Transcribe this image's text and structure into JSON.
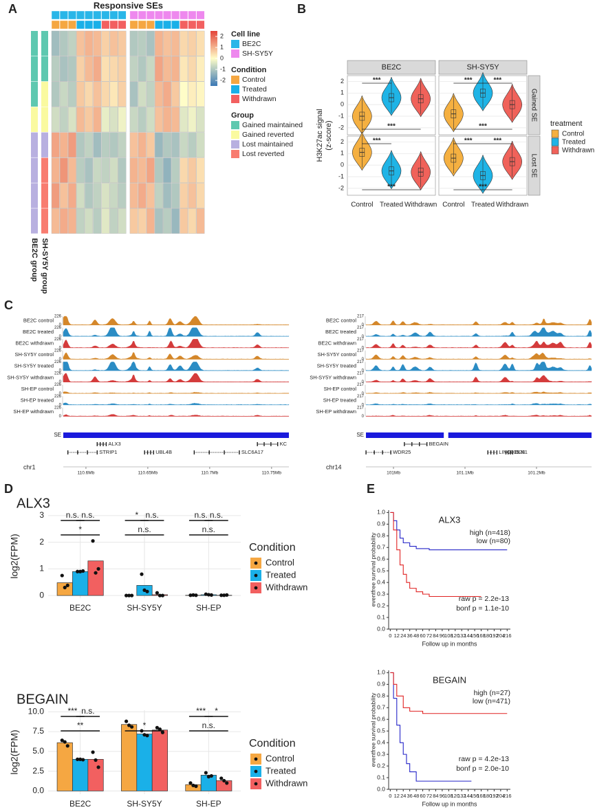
{
  "panel_labels": [
    "A",
    "B",
    "C",
    "D",
    "E"
  ],
  "chart_data": [
    {
      "type": "heatmap",
      "title": "Responsive SEs",
      "clim": [
        -2.5,
        2.5
      ],
      "colors": [
        "#3b78b5",
        "#fffdc8",
        "#e3433a"
      ],
      "colorbar_ticks": [
        2,
        1,
        0,
        -1,
        -2
      ],
      "column_cell_line": [
        0,
        0,
        0,
        0,
        0,
        0,
        0,
        0,
        0,
        1,
        1,
        1,
        1,
        1,
        1,
        1,
        1,
        1
      ],
      "column_condition": [
        0,
        0,
        0,
        1,
        1,
        1,
        2,
        2,
        2,
        0,
        0,
        0,
        1,
        1,
        1,
        2,
        2,
        2
      ],
      "row_group_labels": [
        "BE2C group",
        "SH-SY5Y group"
      ],
      "row_groups": [
        [
          0,
          0,
          0,
          1,
          2,
          2,
          2,
          2
        ],
        [
          0,
          0,
          1,
          1,
          2,
          3,
          3,
          3
        ]
      ],
      "values": [
        [
          -1.2,
          -1,
          -0.8,
          0.8,
          1,
          0.9,
          0.6,
          0.8,
          0.7,
          -1,
          -0.9,
          -1.1,
          1,
          0.8,
          0.9,
          0.5,
          0.6,
          0.4
        ],
        [
          -0.9,
          -1.1,
          -1,
          0.6,
          0.9,
          1.1,
          0.4,
          0.5,
          0.6,
          -0.8,
          -1,
          -0.7,
          1.2,
          0.9,
          1,
          0.3,
          0.5,
          0.2
        ],
        [
          -1,
          -0.7,
          -0.9,
          0.7,
          0.5,
          0.8,
          0.5,
          0.3,
          0.6,
          -1.1,
          -0.6,
          -0.8,
          0.9,
          1.1,
          0.7,
          0,
          0.2,
          0.1
        ],
        [
          -0.6,
          -0.8,
          -0.5,
          0.9,
          0.7,
          1,
          -0.3,
          -0.5,
          -0.2,
          -0.7,
          -0.9,
          -0.6,
          0.8,
          1,
          0.9,
          -0.4,
          -0.2,
          -0.5
        ],
        [
          1.2,
          1,
          1.3,
          -1,
          -0.8,
          -1.2,
          -0.9,
          -1,
          -0.8,
          0.8,
          1,
          0.7,
          -1.3,
          -1,
          -1.1,
          -0.7,
          -0.9,
          -0.6
        ],
        [
          1,
          1.4,
          0.9,
          -0.9,
          -1.1,
          -0.7,
          -0.8,
          -0.6,
          -1,
          1,
          0.9,
          1.2,
          -1,
          -1.4,
          -0.9,
          0.5,
          0.7,
          0.4
        ],
        [
          1.3,
          0.8,
          1.1,
          -0.6,
          -1,
          -0.8,
          -0.5,
          -0.7,
          -0.9,
          0.9,
          1.1,
          0.8,
          -0.8,
          -1.2,
          -1,
          0.6,
          0.8,
          0.5
        ],
        [
          0.9,
          1.1,
          1,
          -0.8,
          -0.6,
          -0.9,
          -0.4,
          -0.8,
          -0.6,
          0.7,
          0.6,
          1,
          -1.1,
          -0.9,
          -1.3,
          0.7,
          0.5,
          0.9
        ]
      ],
      "legend": [
        {
          "title": "Cell line",
          "items": [
            "BE2C",
            "SH-SY5Y"
          ],
          "colors": [
            "#29b6e8",
            "#ee88ee"
          ]
        },
        {
          "title": "Condition",
          "items": [
            "Control",
            "Treated",
            "Withdrawn"
          ],
          "colors": [
            "#f5a742",
            "#1ab0e8",
            "#f26060"
          ]
        },
        {
          "title": "Group",
          "items": [
            "Gained maintained",
            "Gained reverted",
            "Lost maintained",
            "Lost reverted"
          ],
          "colors": [
            "#5ec8b0",
            "#fafaa0",
            "#b8b0e0",
            "#f87c70"
          ]
        }
      ]
    },
    {
      "type": "violin",
      "facets": [
        "BE2C",
        "SH-SY5Y"
      ],
      "rows": [
        "Gained SE",
        "Lost SE"
      ],
      "y_label": [
        "H3K27ac signal",
        "(z-score)"
      ],
      "ylim": [
        -2.6,
        2.5
      ],
      "yticks": [
        2,
        1,
        0,
        -1,
        -2
      ],
      "categories": [
        "Control",
        "Treated",
        "Withdrawn"
      ],
      "colors": [
        "#f5b041",
        "#1fb4e6",
        "#f0625a"
      ],
      "legend_title": "treatment",
      "grid": true,
      "medians": [
        [
          [
            -1,
            0.6,
            0.5
          ],
          [
            -0.8,
            1,
            0
          ]
        ],
        [
          [
            1.1,
            -0.5,
            -0.6
          ],
          [
            0.6,
            -0.9,
            0.3
          ]
        ]
      ],
      "brackets": [
        [
          [
            {
              "from": 0,
              "to": 1,
              "label": "***"
            },
            {
              "from": 0,
              "to": 2,
              "label": "***"
            }
          ],
          [
            {
              "from": 0,
              "to": 1,
              "label": "***"
            },
            {
              "from": 1,
              "to": 2,
              "label": "***"
            },
            {
              "from": 0,
              "to": 2,
              "label": "***"
            }
          ]
        ],
        [
          [
            {
              "from": 0,
              "to": 1,
              "label": "***"
            },
            {
              "from": 0,
              "to": 2,
              "label": "***"
            }
          ],
          [
            {
              "from": 0,
              "to": 1,
              "label": "***"
            },
            {
              "from": 1,
              "to": 2,
              "label": "***"
            },
            {
              "from": 0,
              "to": 2,
              "label": "***"
            }
          ]
        ]
      ]
    },
    {
      "type": "bar",
      "title": "ALX3",
      "categories": [
        "BE2C",
        "SH-SY5Y",
        "SH-EP"
      ],
      "y_label": "log2(FPM)",
      "ylim": [
        -0.1,
        3.05
      ],
      "yticks": [
        0,
        1,
        2,
        3
      ],
      "legend_title": "Condition",
      "grid": true,
      "series": [
        {
          "name": "Control",
          "color": "#f5a742",
          "values": [
            0.48,
            0,
            0.01
          ],
          "points": [
            [
              0.75,
              0.3,
              0.38
            ],
            [
              0,
              0,
              0
            ],
            [
              0.01,
              0.02,
              0.01
            ]
          ]
        },
        {
          "name": "Treated",
          "color": "#1ab0e8",
          "values": [
            0.9,
            0.38,
            0.03
          ],
          "points": [
            [
              0.9,
              0.9,
              0.92
            ],
            [
              0.8,
              0.2,
              0.15
            ],
            [
              0.05,
              0.03,
              0.02
            ]
          ]
        },
        {
          "name": "Withdrawn",
          "color": "#f26060",
          "values": [
            1.3,
            0.03,
            0.01
          ],
          "points": [
            [
              2.05,
              0.85,
              1.0
            ],
            [
              0.1,
              0,
              0
            ],
            [
              0.01,
              0.01,
              0.02
            ]
          ]
        }
      ],
      "brackets": [
        [
          {
            "from": 0,
            "to": 1,
            "label": "n.s."
          },
          {
            "from": 1,
            "to": 2,
            "label": "n.s."
          },
          {
            "from": 0,
            "to": 2,
            "label": "*"
          }
        ],
        [
          {
            "from": 0,
            "to": 1,
            "label": "*"
          },
          {
            "from": 1,
            "to": 2,
            "label": "n.s."
          },
          {
            "from": 0,
            "to": 2,
            "label": "n.s."
          }
        ],
        [
          {
            "from": 0,
            "to": 1,
            "label": "n.s."
          },
          {
            "from": 1,
            "to": 2,
            "label": "n.s."
          },
          {
            "from": 0,
            "to": 2,
            "label": "n.s."
          }
        ]
      ]
    },
    {
      "type": "bar",
      "title": "BEGAIN",
      "categories": [
        "BE2C",
        "SH-SY5Y",
        "SH-EP"
      ],
      "y_label": "log2(FPM)",
      "ylim": [
        -0.4,
        10.2
      ],
      "yticks": [
        {
          "value": 0,
          "label": "0.0"
        },
        2.5,
        {
          "value": 5,
          "label": "5.0"
        },
        7.5,
        {
          "value": 10,
          "label": "10.0"
        }
      ],
      "legend_title": "Condition",
      "grid": true,
      "series": [
        {
          "name": "Control",
          "color": "#f5a742",
          "values": [
            6.1,
            8.4,
            0.8
          ],
          "points": [
            [
              6.4,
              6.2,
              5.7
            ],
            [
              8.8,
              8.3,
              8.1
            ],
            [
              1.0,
              0.7,
              0.6
            ]
          ]
        },
        {
          "name": "Treated",
          "color": "#1ab0e8",
          "values": [
            4.0,
            7.2,
            2.0
          ],
          "points": [
            [
              4.0,
              4.0,
              3.95
            ],
            [
              7.6,
              7.1,
              7.0
            ],
            [
              2.3,
              1.8,
              1.9
            ]
          ]
        },
        {
          "name": "Withdrawn",
          "color": "#f26060",
          "values": [
            4.0,
            7.7,
            1.3
          ],
          "points": [
            [
              4.9,
              3.9,
              3.0
            ],
            [
              8.0,
              7.8,
              7.4
            ],
            [
              1.6,
              1.3,
              1.0
            ]
          ]
        }
      ],
      "brackets": [
        [
          {
            "from": 0,
            "to": 1,
            "label": "***"
          },
          {
            "from": 1,
            "to": 2,
            "label": "n.s."
          },
          {
            "from": 0,
            "to": 2,
            "label": "**"
          }
        ],
        [
          {
            "from": 0,
            "to": 2,
            "label": "*"
          }
        ],
        [
          {
            "from": 0,
            "to": 1,
            "label": "***"
          },
          {
            "from": 1,
            "to": 2,
            "label": "*"
          },
          {
            "from": 0,
            "to": 2,
            "label": "n.s."
          }
        ]
      ]
    },
    {
      "type": "line",
      "title": "ALX3",
      "x_label": "Follow up in months",
      "y_label": "eventfree survival probability",
      "xlim": [
        -3,
        222
      ],
      "xticks": [
        0,
        12,
        24,
        36,
        48,
        60,
        72,
        84,
        96,
        108,
        120,
        132,
        144,
        156,
        168,
        180,
        192,
        204,
        216
      ],
      "ylim": [
        0,
        1.02
      ],
      "yticks": [
        {
          "value": 0,
          "label": "0.0"
        },
        0.1,
        0.2,
        0.3,
        0.4,
        0.5,
        0.6,
        0.7,
        0.8,
        0.9,
        {
          "value": 1,
          "label": "1.0"
        }
      ],
      "series": [
        {
          "name": "high (n=418)",
          "color": "#2323c8",
          "x": [
            0,
            6,
            12,
            18,
            24,
            36,
            48,
            72,
            216
          ],
          "values": [
            1,
            0.93,
            0.85,
            0.78,
            0.74,
            0.71,
            0.69,
            0.68,
            0.68
          ]
        },
        {
          "name": "low (n=80)",
          "color": "#e02020",
          "x": [
            0,
            6,
            12,
            18,
            24,
            30,
            36,
            48,
            60,
            72,
            168
          ],
          "values": [
            1,
            0.85,
            0.68,
            0.55,
            0.47,
            0.4,
            0.35,
            0.32,
            0.3,
            0.28,
            0.28
          ]
        }
      ],
      "annotations": [
        "raw p = 2.2e-13",
        "bonf p = 1.1e-10"
      ]
    },
    {
      "type": "line",
      "title": "BEGAIN",
      "x_label": "Follow up in months",
      "y_label": "eventfree survival probability",
      "xlim": [
        -3,
        222
      ],
      "xticks": [
        0,
        12,
        24,
        36,
        48,
        60,
        72,
        84,
        96,
        108,
        120,
        132,
        144,
        156,
        168,
        180,
        192,
        204,
        216
      ],
      "ylim": [
        0,
        1.02
      ],
      "yticks": [
        {
          "value": 0,
          "label": "0.0"
        },
        0.1,
        0.2,
        0.3,
        0.4,
        0.5,
        0.6,
        0.7,
        0.8,
        0.9,
        {
          "value": 1,
          "label": "1.0"
        }
      ],
      "series": [
        {
          "name": "high (n=27)",
          "color": "#2323c8",
          "x": [
            0,
            6,
            12,
            18,
            24,
            30,
            36,
            48,
            150
          ],
          "values": [
            1,
            0.78,
            0.55,
            0.4,
            0.3,
            0.22,
            0.15,
            0.07,
            0.07
          ]
        },
        {
          "name": "low (n=471)",
          "color": "#e02020",
          "x": [
            0,
            6,
            12,
            24,
            36,
            60,
            216
          ],
          "values": [
            1,
            0.9,
            0.8,
            0.7,
            0.67,
            0.65,
            0.65
          ]
        }
      ],
      "annotations": [
        "raw p = 4.2e-13",
        "bonf p = 2.0e-10"
      ]
    }
  ],
  "genome_tracks": {
    "track_colors": [
      "#d4872a",
      "#2b8cc4",
      "#d43b3b"
    ],
    "sides": [
      {
        "tracks": [
          "BE2C control",
          "BE2C treated",
          "BE2C withdrawn",
          "SH-SY5Y control",
          "SH-SY5Y treated",
          "SH-SY5Y withdrawn",
          "SH-EP control",
          "SH-EP treated",
          "SH-EP withdrawn"
        ],
        "ymin": 0,
        "ymax": 226,
        "se_label": "SE",
        "genes": [
          "ALX3",
          "STRIP1",
          "UBL4B",
          "SLC6A17",
          "KC"
        ],
        "chrom": "chr1",
        "xlim": [
          110.5817,
          110.764
        ],
        "xticks": [
          {
            "value": 110.6,
            "label": "110.6Mb"
          },
          {
            "value": 110.65,
            "label": "110.65Mb"
          },
          {
            "value": 110.7,
            "label": "110.7Mb"
          },
          {
            "value": 110.75,
            "label": "110.75Mb"
          }
        ]
      },
      {
        "tracks": [
          "BE2C control",
          "BE2C treated",
          "BE2C withdrawn",
          "SH-SY5Y control",
          "SH-SY5Y treated",
          "SH-SY5Y withdrawn",
          "SH-EP control",
          "SH-EP treated",
          "SH-EP withdrawn"
        ],
        "ymin": 0,
        "ymax": 217,
        "se_label": "SE",
        "genes": [
          "BEGAIN",
          "WDR25",
          "LINC00523",
          "DLK1"
        ],
        "chrom": "chr14",
        "xlim": [
          100.9615,
          101.277
        ],
        "xticks": [
          {
            "value": 101,
            "label": "101Mb"
          },
          {
            "value": 101.1,
            "label": "101.1Mb"
          },
          {
            "value": 101.2,
            "label": "101.2Mb"
          }
        ]
      }
    ]
  }
}
